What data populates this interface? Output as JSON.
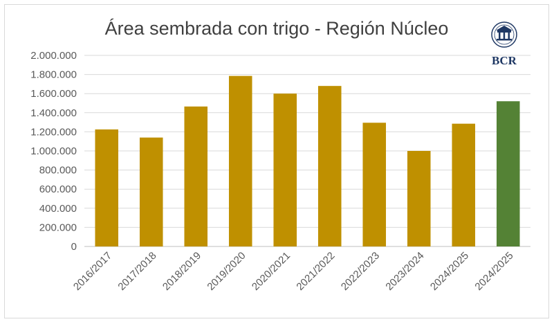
{
  "chart_data": {
    "type": "bar",
    "title": "Área sembrada con trigo - Región Núcleo",
    "xlabel": "",
    "ylabel": "",
    "categories": [
      "2016/2017",
      "2017/2018",
      "2018/2019",
      "2019/2020",
      "2020/2021",
      "2021/2022",
      "2022/2023",
      "2023/2024",
      "2024/2025",
      "2024/2025"
    ],
    "values": [
      1225000,
      1140000,
      1465000,
      1785000,
      1600000,
      1680000,
      1295000,
      1000000,
      1285000,
      1520000
    ],
    "bar_colors": [
      "#bf9000",
      "#bf9000",
      "#bf9000",
      "#bf9000",
      "#bf9000",
      "#bf9000",
      "#bf9000",
      "#bf9000",
      "#bf9000",
      "#548235"
    ],
    "ylim": [
      0,
      2000000
    ],
    "yticks": [
      "0",
      "200.000",
      "400.000",
      "600.000",
      "800.000",
      "1.000.000",
      "1.200.000",
      "1.400.000",
      "1.600.000",
      "1.800.000",
      "2.000.000"
    ],
    "grid": true,
    "legend": "none"
  },
  "logo": {
    "text": "BCR",
    "icon": "bcr-seal-icon",
    "color": "#1f3864"
  }
}
